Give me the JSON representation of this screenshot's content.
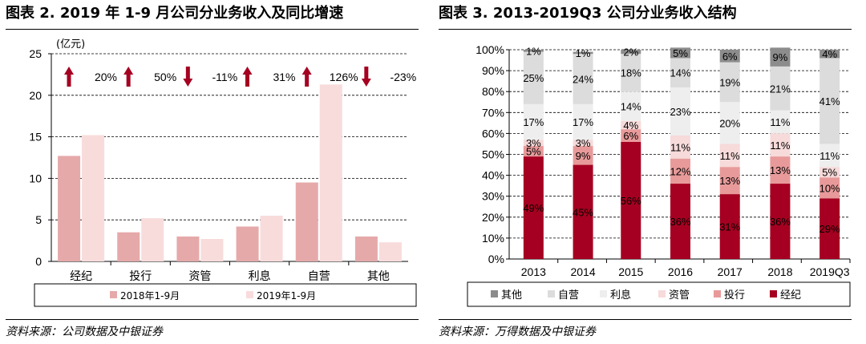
{
  "left": {
    "title": "图表 2. 2019 年 1-9 月公司分业务收入及同比增速",
    "source": "资料来源：公司数据及中银证券",
    "chart_data": {
      "type": "bar",
      "unit_label": "(亿元)",
      "categories": [
        "经纪",
        "投行",
        "资管",
        "利息",
        "自营",
        "其他"
      ],
      "series": [
        {
          "name": "2018年1-9月",
          "values": [
            12.7,
            3.5,
            3.0,
            4.2,
            9.5,
            3.0
          ],
          "color": "#e6a9a9"
        },
        {
          "name": "2019年1-9月",
          "values": [
            15.2,
            5.2,
            2.7,
            5.5,
            21.3,
            2.3
          ],
          "color": "#f8dcdc"
        }
      ],
      "yoy_growth": [
        {
          "label": "20%",
          "direction": "up"
        },
        {
          "label": "50%",
          "direction": "up"
        },
        {
          "label": "-11%",
          "direction": "down"
        },
        {
          "label": "31%",
          "direction": "up"
        },
        {
          "label": "126%",
          "direction": "up"
        },
        {
          "label": "-23%",
          "direction": "down"
        }
      ],
      "ylim": [
        0,
        25
      ],
      "yticks": [
        0,
        5,
        10,
        15,
        20,
        25
      ],
      "legend_position": "bottom",
      "gridlines": "dashed"
    }
  },
  "right": {
    "title": "图表 3. 2013-2019Q3 公司分业务收入结构",
    "source": "资料来源：万得数据及中银证券",
    "chart_data": {
      "type": "bar",
      "stacked": true,
      "categories": [
        "2013",
        "2014",
        "2015",
        "2016",
        "2017",
        "2018",
        "2019Q3"
      ],
      "series": [
        {
          "name": "经纪",
          "values": [
            49,
            45,
            56,
            36,
            31,
            36,
            29
          ],
          "labels": [
            "49%",
            "45%",
            "56%",
            "36%",
            "31%",
            "36%",
            "29%"
          ],
          "color": "#a50021"
        },
        {
          "name": "投行",
          "values": [
            5,
            9,
            6,
            12,
            13,
            13,
            10
          ],
          "labels": [
            "5%",
            "9%",
            "6%",
            "12%",
            "13%",
            "13%",
            "10%"
          ],
          "color": "#e89a9a"
        },
        {
          "name": "资管",
          "values": [
            3,
            3,
            4,
            11,
            11,
            11,
            5
          ],
          "labels": [
            "3%",
            "3%",
            "4%",
            "11%",
            "11%",
            "11%",
            "5%"
          ],
          "color": "#f7dada"
        },
        {
          "name": "利息",
          "values": [
            17,
            17,
            14,
            23,
            20,
            11,
            11
          ],
          "labels": [
            "17%",
            "17%",
            "14%",
            "23%",
            "20%",
            "11%",
            "11%"
          ],
          "color": "#eeeeee"
        },
        {
          "name": "自营",
          "values": [
            25,
            24,
            18,
            14,
            19,
            21,
            41
          ],
          "labels": [
            "25%",
            "24%",
            "18%",
            "14%",
            "19%",
            "21%",
            "41%"
          ],
          "color": "#dcdcdc"
        },
        {
          "name": "其他",
          "values": [
            1,
            1,
            2,
            5,
            6,
            9,
            4
          ],
          "labels": [
            "1%",
            "1%",
            "2%",
            "5%",
            "6%",
            "9%",
            "4%"
          ],
          "color": "#8c8c8c"
        }
      ],
      "legend_order": [
        "其他",
        "自营",
        "利息",
        "资管",
        "投行",
        "经纪"
      ],
      "ylim": [
        0,
        100
      ],
      "yticks": [
        "0%",
        "10%",
        "20%",
        "30%",
        "40%",
        "50%",
        "60%",
        "70%",
        "80%",
        "90%",
        "100%"
      ],
      "legend_position": "bottom",
      "gridlines": "dashed"
    }
  }
}
